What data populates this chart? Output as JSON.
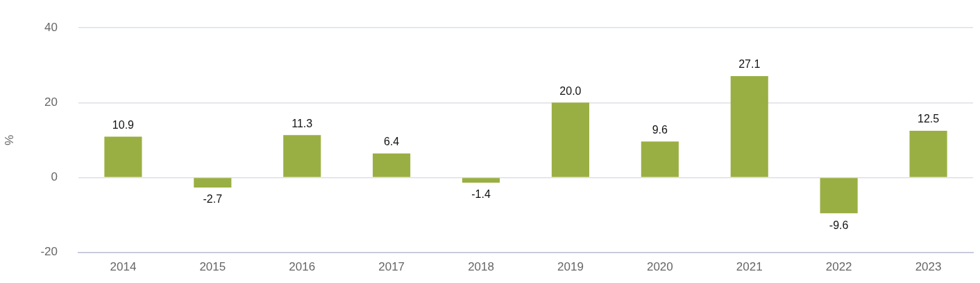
{
  "chart_data": {
    "type": "bar",
    "ylabel": "%",
    "categories": [
      "2014",
      "2015",
      "2016",
      "2017",
      "2018",
      "2019",
      "2020",
      "2021",
      "2022",
      "2023"
    ],
    "values": [
      10.9,
      -2.7,
      11.3,
      6.4,
      -1.4,
      20.0,
      9.6,
      27.1,
      -9.6,
      12.5
    ],
    "value_labels": [
      "10.9",
      "-2.7",
      "11.3",
      "6.4",
      "-1.4",
      "20.0",
      "9.6",
      "27.1",
      "-9.6",
      "12.5"
    ],
    "color": "#9aaf43",
    "ylim": [
      -20,
      40
    ],
    "yticks": [
      -20,
      0,
      20,
      40
    ],
    "grid": "y",
    "legend": false
  }
}
